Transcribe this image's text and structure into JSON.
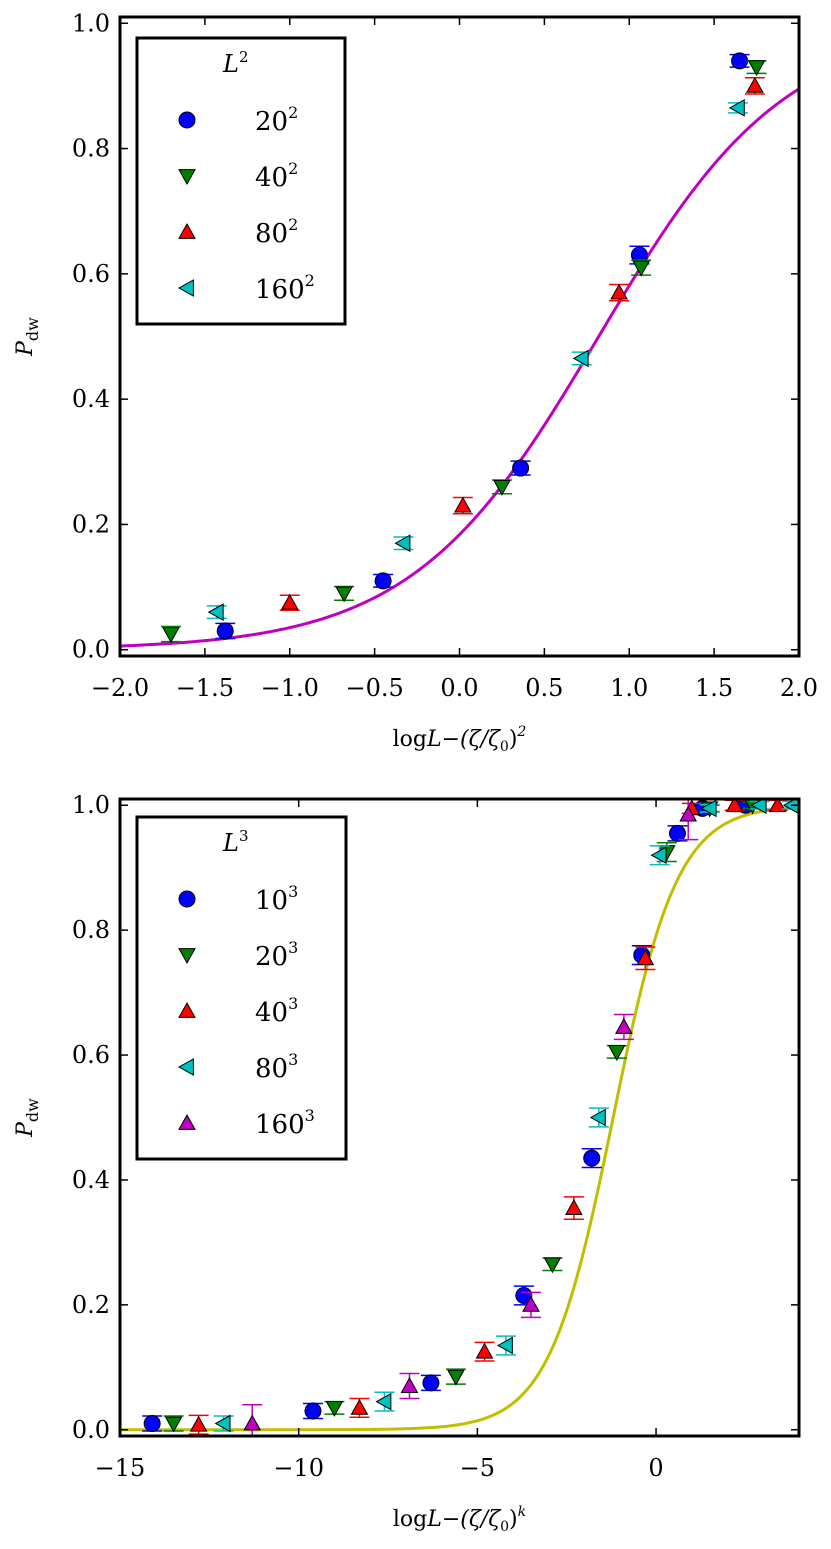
{
  "chart_data": [
    {
      "type": "scatter",
      "xlabel": "logL−(ζ/ζ₀)²",
      "ylabel": "P_dw",
      "xlabel_main": "log",
      "xlabel_L": "L",
      "xlabel_rest": "−(ζ/ζ",
      "xlabel_sub": "0",
      "xlabel_close": ")",
      "xlabel_exp": "2",
      "ylabel_main": "P",
      "ylabel_sub": "dw",
      "xlim": [
        -2.0,
        2.0
      ],
      "ylim": [
        -0.01,
        1.01
      ],
      "xticks": [
        -2.0,
        -1.5,
        -1.0,
        -0.5,
        0.0,
        0.5,
        1.0,
        1.5,
        2.0
      ],
      "xtick_labels": [
        "−2.0",
        "−1.5",
        "−1.0",
        "−0.5",
        "0.0",
        "0.5",
        "1.0",
        "1.5",
        "2.0"
      ],
      "yticks": [
        0.0,
        0.2,
        0.4,
        0.6,
        0.8,
        1.0
      ],
      "ytick_labels": [
        "0.0",
        "0.2",
        "0.4",
        "0.6",
        "0.8",
        "1.0"
      ],
      "legend_title": "L",
      "legend_title_exp": "2",
      "legend_placement": "top-left",
      "fit_curve": {
        "color": "#bf00bf",
        "form": "logistic",
        "x0": 0.82,
        "w": 0.55,
        "A": 1.0
      },
      "series": [
        {
          "name": "20",
          "exp": "2",
          "marker": "circle",
          "color": "#0000ff",
          "errcolor": "#0000ff",
          "x": [
            -1.38,
            -0.45,
            0.36,
            1.06,
            1.65
          ],
          "y": [
            0.03,
            0.11,
            0.29,
            0.63,
            0.94
          ],
          "err": [
            0.012,
            0.01,
            0.011,
            0.014,
            0.01
          ]
        },
        {
          "name": "40",
          "exp": "2",
          "marker": "triangle-down",
          "color": "#007f00",
          "errcolor": "#007f00",
          "x": [
            -1.7,
            -0.68,
            0.25,
            1.07,
            1.75
          ],
          "y": [
            0.025,
            0.09,
            0.26,
            0.61,
            0.93
          ],
          "err": [
            0.012,
            0.011,
            0.011,
            0.012,
            0.01
          ]
        },
        {
          "name": "80",
          "exp": "2",
          "marker": "triangle-up",
          "color": "#ff0000",
          "errcolor": "#ff0000",
          "x": [
            -1.0,
            0.02,
            0.94,
            1.74
          ],
          "y": [
            0.075,
            0.23,
            0.57,
            0.9
          ],
          "err": [
            0.012,
            0.013,
            0.013,
            0.013
          ]
        },
        {
          "name": "160",
          "exp": "2",
          "marker": "triangle-left",
          "color": "#00bfbf",
          "errcolor": "#00bfbf",
          "x": [
            -1.43,
            -0.33,
            0.72,
            1.64
          ],
          "y": [
            0.06,
            0.17,
            0.465,
            0.865
          ],
          "err": [
            0.01,
            0.01,
            0.01,
            0.008
          ]
        }
      ]
    },
    {
      "type": "scatter",
      "xlabel": "logL−(ζ/ζ₀)^k",
      "ylabel": "P_dw",
      "xlabel_main": "log",
      "xlabel_L": "L",
      "xlabel_rest": "−(ζ/ζ",
      "xlabel_sub": "0",
      "xlabel_close": ")",
      "xlabel_exp": "k",
      "ylabel_main": "P",
      "ylabel_sub": "dw",
      "xlim": [
        -15,
        4
      ],
      "ylim": [
        -0.01,
        1.01
      ],
      "xticks": [
        -15,
        -10,
        -5,
        0
      ],
      "xtick_labels": [
        "−15",
        "−10",
        "−5",
        "0"
      ],
      "yticks": [
        0.0,
        0.2,
        0.4,
        0.6,
        0.8,
        1.0
      ],
      "ytick_labels": [
        "0.0",
        "0.2",
        "0.4",
        "0.6",
        "0.8",
        "1.0"
      ],
      "legend_title": "L",
      "legend_title_exp": "3",
      "legend_placement": "top-left",
      "fit_curve": {
        "color": "#bfbf00",
        "form": "logistic",
        "x0": -1.2,
        "w": 0.9,
        "A": 1.0
      },
      "series": [
        {
          "name": "10",
          "exp": "3",
          "marker": "circle",
          "color": "#0000ff",
          "errcolor": "#0000ff",
          "x": [
            -14.1,
            -9.6,
            -6.3,
            -3.7,
            -1.8,
            -0.4,
            0.6,
            1.3,
            2.5
          ],
          "y": [
            0.01,
            0.03,
            0.075,
            0.215,
            0.435,
            0.76,
            0.955,
            0.995,
            1.0
          ],
          "err": [
            0.012,
            0.012,
            0.012,
            0.015,
            0.015,
            0.015,
            0.012,
            0.005,
            0.005
          ]
        },
        {
          "name": "20",
          "exp": "3",
          "marker": "triangle-down",
          "color": "#007f00",
          "errcolor": "#007f00",
          "x": [
            -13.5,
            -9.0,
            -5.6,
            -2.9,
            -1.1,
            0.3,
            1.5,
            2.7
          ],
          "y": [
            0.01,
            0.035,
            0.085,
            0.265,
            0.605,
            0.925,
            0.995,
            1.0
          ],
          "err": [
            0.012,
            0.01,
            0.012,
            0.01,
            0.01,
            0.015,
            0.005,
            0.005
          ]
        },
        {
          "name": "40",
          "exp": "3",
          "marker": "triangle-up",
          "color": "#ff0000",
          "errcolor": "#ff0000",
          "x": [
            -12.8,
            -8.3,
            -4.8,
            -2.3,
            -0.3,
            1.0,
            2.2,
            3.4
          ],
          "y": [
            0.008,
            0.035,
            0.125,
            0.355,
            0.755,
            0.995,
            1.0,
            1.0
          ],
          "err": [
            0.015,
            0.015,
            0.015,
            0.018,
            0.018,
            0.008,
            0.008,
            0.008
          ]
        },
        {
          "name": "80",
          "exp": "3",
          "marker": "triangle-left",
          "color": "#00bfbf",
          "errcolor": "#00bfbf",
          "x": [
            -12.1,
            -7.6,
            -4.2,
            -1.6,
            0.1,
            1.5,
            2.9,
            3.8
          ],
          "y": [
            0.01,
            0.045,
            0.135,
            0.5,
            0.92,
            0.995,
            1.0,
            1.0
          ],
          "err": [
            0.012,
            0.015,
            0.015,
            0.015,
            0.015,
            0.006,
            0.006,
            0.006
          ]
        },
        {
          "name": "160",
          "exp": "3",
          "marker": "triangle-up",
          "color": "#bf00bf",
          "errcolor": "#bf00bf",
          "x": [
            -11.3,
            -6.9,
            -3.5,
            -0.9,
            0.9
          ],
          "y": [
            0.01,
            0.07,
            0.2,
            0.645,
            0.985
          ],
          "err": [
            0.03,
            0.02,
            0.02,
            0.02,
            0.04
          ]
        }
      ]
    }
  ]
}
